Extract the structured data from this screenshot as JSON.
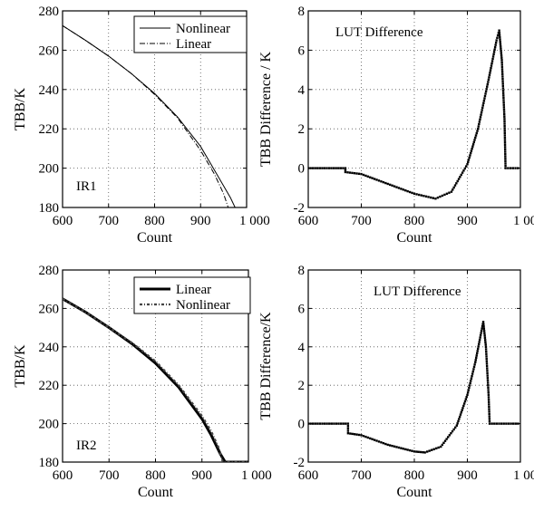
{
  "chart_data": [
    {
      "type": "line",
      "panel_label": "IR1",
      "xlabel": "Count",
      "ylabel": "TBB/K",
      "xlim": [
        600,
        1000
      ],
      "ylim": [
        180,
        280
      ],
      "xticks": [
        600,
        700,
        800,
        900,
        1000
      ],
      "xtick_labels": [
        "600",
        "700",
        "800",
        "900",
        "1 000"
      ],
      "yticks": [
        180,
        200,
        220,
        240,
        260,
        280
      ],
      "grid": true,
      "legend_position": "top-right",
      "series": [
        {
          "name": "Nonlinear",
          "style": "solid-thin",
          "x": [
            600,
            650,
            700,
            750,
            800,
            850,
            900,
            930,
            950,
            965,
            975
          ],
          "y": [
            272.5,
            265,
            257,
            248,
            238,
            226,
            211,
            199,
            191,
            185,
            180
          ]
        },
        {
          "name": "Linear",
          "style": "dashdot",
          "x": [
            600,
            650,
            700,
            750,
            800,
            850,
            900,
            930,
            950,
            960
          ],
          "y": [
            272.5,
            265,
            257,
            248,
            237.5,
            225.5,
            209,
            197,
            187,
            180
          ]
        }
      ]
    },
    {
      "type": "scatter",
      "annotation": "LUT Difference",
      "xlabel": "Count",
      "ylabel": "TBB Difference / K",
      "xlim": [
        600,
        1000
      ],
      "ylim": [
        -2,
        8
      ],
      "xticks": [
        600,
        700,
        800,
        900,
        1000
      ],
      "xtick_labels": [
        "600",
        "700",
        "800",
        "900",
        "1 000"
      ],
      "yticks": [
        -2,
        0,
        2,
        4,
        6,
        8
      ],
      "grid": true,
      "series": [
        {
          "name": "",
          "x": [
            600,
            670,
            670,
            700,
            750,
            800,
            840,
            870,
            900,
            920,
            940,
            955,
            960,
            965,
            970,
            972,
            1000
          ],
          "y": [
            0,
            0,
            -0.2,
            -0.3,
            -0.8,
            -1.3,
            -1.55,
            -1.2,
            0.2,
            2.0,
            4.5,
            6.5,
            7.0,
            5.5,
            2.5,
            0,
            0
          ]
        }
      ]
    },
    {
      "type": "line",
      "panel_label": "IR2",
      "xlabel": "Count",
      "ylabel": "TBB/K",
      "xlim": [
        600,
        1000
      ],
      "ylim": [
        180,
        280
      ],
      "xticks": [
        600,
        700,
        800,
        900,
        1000
      ],
      "xtick_labels": [
        "600",
        "700",
        "800",
        "900",
        "1 000"
      ],
      "yticks": [
        180,
        200,
        220,
        240,
        260,
        280
      ],
      "grid": true,
      "legend_position": "top-right",
      "series": [
        {
          "name": "Linear",
          "style": "solid-thick",
          "x": [
            600,
            650,
            700,
            750,
            800,
            850,
            900,
            920,
            940,
            950,
            1000
          ],
          "y": [
            265,
            258,
            250,
            241.5,
            231.5,
            219,
            202.5,
            194,
            184,
            180,
            180
          ]
        },
        {
          "name": "Nonlinear",
          "style": "dashdot-marker",
          "x": [
            600,
            650,
            700,
            750,
            800,
            850,
            900,
            920,
            935,
            945,
            1000
          ],
          "y": [
            265,
            258,
            250,
            242,
            232.5,
            220,
            204,
            196,
            188,
            180,
            180
          ]
        }
      ]
    },
    {
      "type": "scatter",
      "annotation": "LUT Difference",
      "xlabel": "Count",
      "ylabel": "TBB Difference/K",
      "xlim": [
        600,
        1000
      ],
      "ylim": [
        -2,
        8
      ],
      "xticks": [
        600,
        700,
        800,
        900,
        1000
      ],
      "xtick_labels": [
        "600",
        "700",
        "800",
        "900",
        "1 000"
      ],
      "yticks": [
        -2,
        0,
        2,
        4,
        6,
        8
      ],
      "grid": true,
      "series": [
        {
          "name": "",
          "x": [
            600,
            675,
            675,
            700,
            750,
            800,
            820,
            850,
            880,
            900,
            915,
            925,
            930,
            935,
            940,
            942,
            1000
          ],
          "y": [
            0,
            0,
            -0.5,
            -0.6,
            -1.1,
            -1.45,
            -1.5,
            -1.2,
            -0.1,
            1.5,
            3.2,
            4.6,
            5.3,
            4.0,
            1.5,
            0,
            0
          ]
        }
      ]
    }
  ]
}
